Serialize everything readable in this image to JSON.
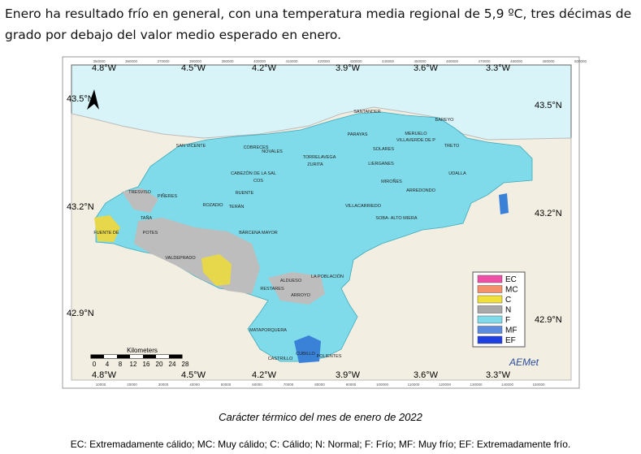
{
  "header": {
    "text": "Enero ha resultado frío en general, con una temperatura media regional de 5,9 ºC, tres décimas de grado por debajo del valor medio esperado en enero."
  },
  "map": {
    "lon_labels": [
      "4.8°W",
      "4.5°W",
      "4.2°W",
      "3.9°W",
      "3.6°W",
      "3.3°W"
    ],
    "lat_labels_left": [
      "43.5°N",
      "43.2°N",
      "42.9°N"
    ],
    "lat_labels_right": [
      "43.5°N",
      "43.2°N",
      "42.9°N"
    ],
    "top_coords": [
      "350000",
      "360000",
      "370000",
      "380000",
      "390000",
      "400000",
      "410000",
      "420000",
      "430000",
      "440000",
      "450000",
      "460000",
      "470000",
      "480000",
      "490000",
      "500000"
    ],
    "bottom_coords": [
      "10000",
      "20000",
      "30000",
      "40000",
      "50000",
      "60000",
      "70000",
      "80000",
      "90000",
      "100000",
      "110000",
      "120000",
      "130000",
      "140000",
      "150000"
    ],
    "places": [
      "SANTANDER",
      "PARAYAS",
      "BAREYO",
      "MERUELO",
      "VILLAVERDE DE P",
      "SOLARES",
      "TRETO",
      "SAN VICENTE",
      "COBRECES",
      "NOVALES",
      "TORRELAVEGA",
      "ZURITA",
      "LIERGANES",
      "UDALLA",
      "CABEZÓN DE LA SAL",
      "COS",
      "MIROÑES",
      "ARREDONDO",
      "TRESVISO",
      "PIÑERES",
      "RUENTE",
      "ROZADIO",
      "TERÁN",
      "VILLACARRIEDO",
      "SOBA- ALTO MIERA",
      "TAÑA",
      "FUENTE DÉ",
      "POTES",
      "BÁRCENA MAYOR",
      "VALDEPRADO",
      "ALDUESO",
      "LA POBLACIÓN",
      "RESTARES",
      "ARROYO",
      "MATAPORQUERA",
      "CASTRILLO",
      "CUBILLO",
      "POLIENTES"
    ],
    "legend": [
      "EC",
      "MC",
      "C",
      "N",
      "F",
      "MF",
      "EF"
    ],
    "scale_title": "Kilometers",
    "scale_ticks": [
      "0",
      "4",
      "8",
      "12",
      "16",
      "20",
      "24",
      "28"
    ],
    "logo": "AEMet"
  },
  "caption": "Carácter térmico del mes de enero de 2022",
  "footnote": "EC: Extremadamente cálido; MC: Muy cálido; C: Cálido; N: Normal; F: Frío; MF: Muy frío; EF: Extremadamente frío."
}
